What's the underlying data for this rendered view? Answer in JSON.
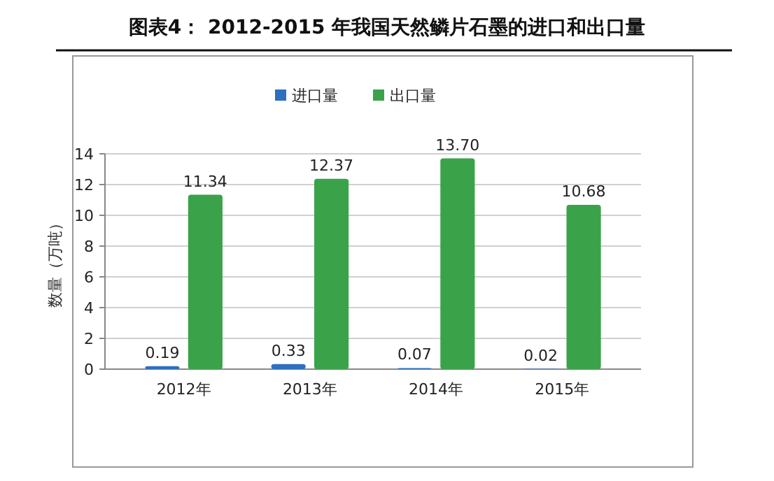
{
  "chart_data": {
    "type": "bar",
    "title": "图表4：  2012-2015 年我国天然鳞片石墨的进口和出口量",
    "ylabel": "数量（万吨）",
    "categories": [
      "2012年",
      "2013年",
      "2014年",
      "2015年"
    ],
    "series": [
      {
        "name": "进口量",
        "color": "#2e6fbf",
        "values": [
          0.19,
          0.33,
          0.07,
          0.02
        ],
        "value_labels": [
          "0.19",
          "0.33",
          "0.07",
          "0.02"
        ]
      },
      {
        "name": "出口量",
        "color": "#3aa34a",
        "values": [
          11.34,
          12.37,
          13.7,
          10.68
        ],
        "value_labels": [
          "11.34",
          "12.37",
          "13.70",
          "10.68"
        ]
      }
    ],
    "ylim": [
      0,
      14
    ],
    "yticks": [
      0,
      2,
      4,
      6,
      8,
      10,
      12,
      14
    ],
    "grid": "y",
    "legend": "top"
  }
}
